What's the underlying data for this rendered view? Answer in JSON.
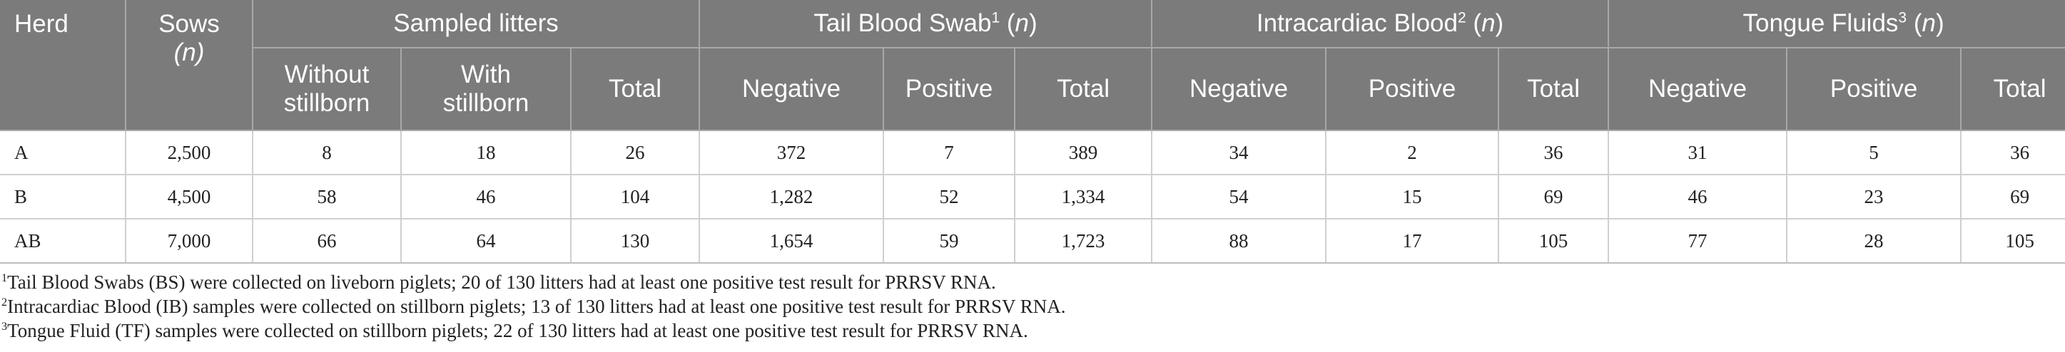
{
  "header": {
    "herd": "Herd",
    "sows": "Sows",
    "sows_n": "(n)",
    "sampled_litters": "Sampled litters",
    "tail_blood_swab": "Tail Blood Swab",
    "tail_sup": "1",
    "intracardiac_blood": "Intracardiac Blood",
    "intra_sup": "2",
    "tongue_fluids": "Tongue Fluids",
    "tongue_sup": "3",
    "n_open": " (",
    "n": "n",
    "n_close": ")",
    "without_stillborn_l1": "Without",
    "without_stillborn_l2": "stillborn",
    "with_stillborn_l1": "With",
    "with_stillborn_l2": "stillborn",
    "total": "Total",
    "negative": "Negative",
    "positive": "Positive"
  },
  "rows": [
    {
      "herd": "A",
      "sows": "2,500",
      "without": "8",
      "with": "18",
      "total": "26",
      "tbs_neg": "372",
      "tbs_pos": "7",
      "tbs_total": "389",
      "ib_neg": "34",
      "ib_pos": "2",
      "ib_total": "36",
      "tf_neg": "31",
      "tf_pos": "5",
      "tf_total": "36"
    },
    {
      "herd": "B",
      "sows": "4,500",
      "without": "58",
      "with": "46",
      "total": "104",
      "tbs_neg": "1,282",
      "tbs_pos": "52",
      "tbs_total": "1,334",
      "ib_neg": "54",
      "ib_pos": "15",
      "ib_total": "69",
      "tf_neg": "46",
      "tf_pos": "23",
      "tf_total": "69"
    },
    {
      "herd": "AB",
      "sows": "7,000",
      "without": "66",
      "with": "64",
      "total": "130",
      "tbs_neg": "1,654",
      "tbs_pos": "59",
      "tbs_total": "1,723",
      "ib_neg": "88",
      "ib_pos": "17",
      "ib_total": "105",
      "tf_neg": "77",
      "tf_pos": "28",
      "tf_total": "105"
    }
  ],
  "notes": [
    {
      "sup": "1",
      "text": "Tail Blood Swabs (BS) were collected on liveborn piglets; 20 of 130 litters had at least one positive test result for PRRSV RNA."
    },
    {
      "sup": "2",
      "text": "Intracardiac Blood (IB) samples were collected on stillborn piglets; 13 of 130 litters had at least one positive test result for PRRSV RNA."
    },
    {
      "sup": "3",
      "text": "Tongue Fluid (TF) samples were collected on stillborn piglets; 22 of 130 litters had at least one positive test result for PRRSV RNA."
    }
  ]
}
